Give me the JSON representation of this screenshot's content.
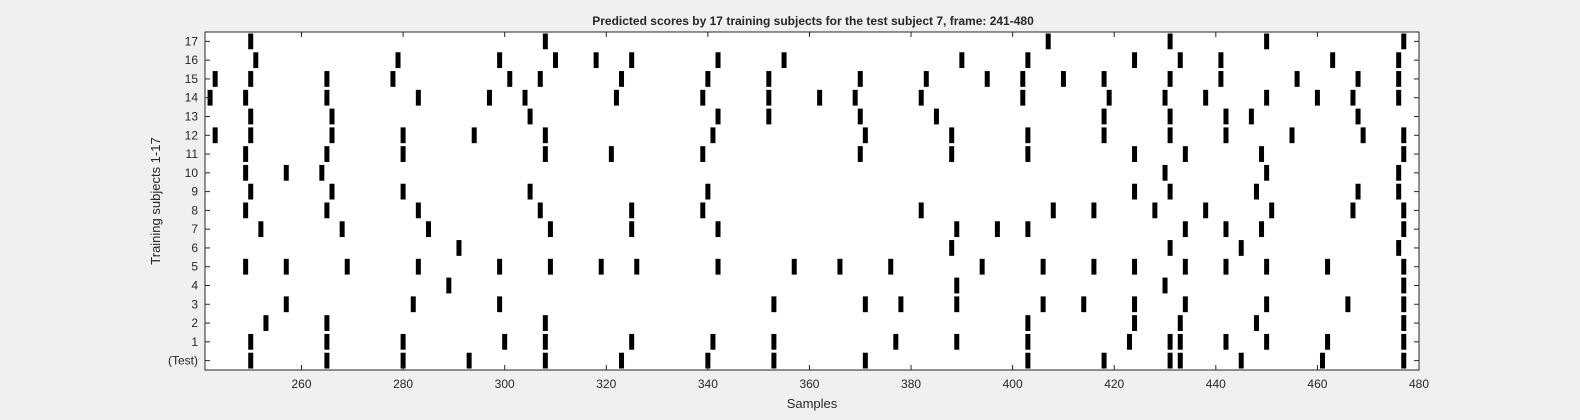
{
  "chart_data": {
    "type": "raster",
    "title": "Predicted scores by 17 training subjects for the test subject 7, frame: 241-480",
    "xlabel": "Samples",
    "ylabel": "Training subjects 1-17",
    "xlim": [
      241,
      480
    ],
    "xticks": [
      260,
      280,
      300,
      320,
      340,
      360,
      380,
      400,
      420,
      440,
      460,
      480
    ],
    "xtick_labels": [
      "260",
      "280",
      "300",
      "320",
      "340",
      "360",
      "380",
      "400",
      "420",
      "440",
      "460",
      "480"
    ],
    "row_labels": [
      "(Test)",
      "1",
      "2",
      "3",
      "4",
      "5",
      "6",
      "7",
      "8",
      "9",
      "10",
      "11",
      "12",
      "13",
      "14",
      "15",
      "16",
      "17"
    ],
    "mark_color": "#000000",
    "background_color": "#ffffff",
    "rows": [
      {
        "label": "(Test)",
        "x": [
          250,
          265,
          280,
          293,
          308,
          323,
          340,
          353,
          371,
          403,
          418,
          431,
          433,
          445,
          461,
          477
        ]
      },
      {
        "label": "1",
        "x": [
          250,
          265,
          280,
          300,
          308,
          325,
          341,
          353,
          377,
          389,
          403,
          423,
          431,
          433,
          442,
          450,
          462,
          477
        ]
      },
      {
        "label": "2",
        "x": [
          253,
          265,
          308,
          403,
          424,
          433,
          448,
          477
        ]
      },
      {
        "label": "3",
        "x": [
          257,
          282,
          299,
          353,
          371,
          378,
          389,
          406,
          414,
          424,
          434,
          450,
          466,
          477
        ]
      },
      {
        "label": "4",
        "x": [
          289,
          389,
          430,
          477
        ]
      },
      {
        "label": "5",
        "x": [
          249,
          257,
          269,
          283,
          299,
          309,
          319,
          326,
          342,
          357,
          366,
          376,
          394,
          406,
          416,
          424,
          434,
          442,
          450,
          462,
          477
        ]
      },
      {
        "label": "6",
        "x": [
          291,
          388,
          431,
          445,
          476
        ]
      },
      {
        "label": "7",
        "x": [
          252,
          268,
          285,
          309,
          325,
          342,
          389,
          397,
          403,
          434,
          442,
          449,
          477
        ]
      },
      {
        "label": "8",
        "x": [
          249,
          265,
          283,
          307,
          325,
          339,
          382,
          408,
          416,
          428,
          438,
          451,
          467,
          477
        ]
      },
      {
        "label": "9",
        "x": [
          250,
          266,
          280,
          305,
          340,
          424,
          431,
          448,
          468,
          476
        ]
      },
      {
        "label": "10",
        "x": [
          249,
          257,
          264,
          430,
          450,
          476
        ]
      },
      {
        "label": "11",
        "x": [
          249,
          265,
          280,
          308,
          321,
          339,
          370,
          388,
          403,
          424,
          434,
          449,
          477
        ]
      },
      {
        "label": "12",
        "x": [
          243,
          250,
          266,
          280,
          294,
          308,
          341,
          371,
          388,
          403,
          418,
          431,
          442,
          455,
          469,
          477
        ]
      },
      {
        "label": "13",
        "x": [
          250,
          266,
          305,
          342,
          352,
          370,
          385,
          418,
          431,
          442,
          447,
          468
        ]
      },
      {
        "label": "14",
        "x": [
          242,
          249,
          265,
          283,
          297,
          304,
          322,
          339,
          352,
          362,
          369,
          382,
          402,
          419,
          430,
          438,
          450,
          460,
          467,
          476
        ]
      },
      {
        "label": "15",
        "x": [
          243,
          250,
          265,
          278,
          301,
          307,
          323,
          340,
          352,
          370,
          383,
          395,
          402,
          410,
          418,
          431,
          441,
          456,
          468,
          476
        ]
      },
      {
        "label": "16",
        "x": [
          251,
          279,
          299,
          310,
          318,
          325,
          342,
          355,
          390,
          403,
          424,
          433,
          441,
          463,
          476
        ]
      },
      {
        "label": "17",
        "x": [
          250,
          308,
          407,
          431,
          450,
          477
        ]
      }
    ]
  }
}
